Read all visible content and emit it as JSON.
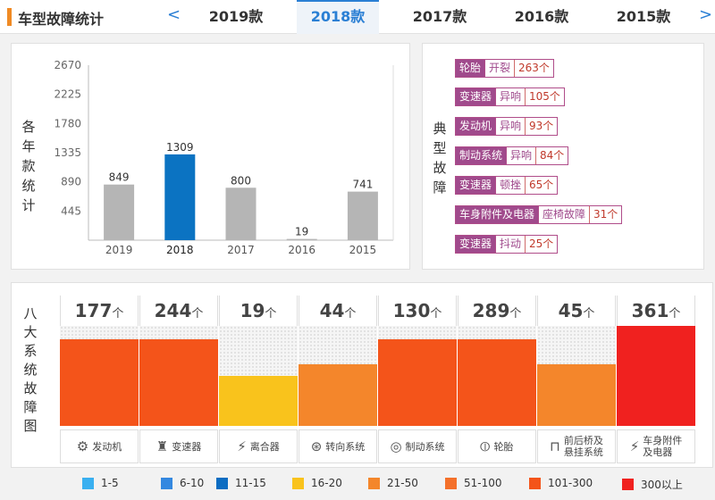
{
  "header": {
    "title": "车型故障统计",
    "prev_arrow": "<",
    "next_arrow": ">",
    "tabs": [
      {
        "label": "2019款",
        "active": false
      },
      {
        "label": "2018款",
        "active": true
      },
      {
        "label": "2017款",
        "active": false
      },
      {
        "label": "2016款",
        "active": false
      },
      {
        "label": "2015款",
        "active": false
      }
    ]
  },
  "yearly": {
    "title_chars": [
      "各",
      "年",
      "款",
      "统",
      "计"
    ]
  },
  "chart_data": {
    "type": "bar",
    "categories": [
      "2019",
      "2018",
      "2017",
      "2016",
      "2015"
    ],
    "values": [
      849,
      1309,
      800,
      19,
      741
    ],
    "highlight_index": 1,
    "ylim": [
      0,
      2670
    ],
    "yticks": [
      445,
      890,
      1335,
      1780,
      2225,
      2670
    ],
    "grid": false,
    "colors": {
      "default": "#b5b5b5",
      "highlight": "#0b73c2"
    }
  },
  "typical": {
    "title_chars": [
      "典",
      "型",
      "故",
      "障"
    ],
    "items": [
      {
        "part": "轮胎",
        "type": "开裂",
        "count": "263个"
      },
      {
        "part": "变速器",
        "type": "异响",
        "count": "105个"
      },
      {
        "part": "发动机",
        "type": "异响",
        "count": "93个"
      },
      {
        "part": "制动系统",
        "type": "异响",
        "count": "84个"
      },
      {
        "part": "变速器",
        "type": "顿挫",
        "count": "65个"
      },
      {
        "part": "车身附件及电器",
        "type": "座椅故障",
        "count": "31个"
      },
      {
        "part": "变速器",
        "type": "抖动",
        "count": "25个"
      }
    ]
  },
  "systems": {
    "title_chars": [
      "八",
      "大",
      "系",
      "统",
      "故",
      "障",
      "图"
    ],
    "unit": "个",
    "items": [
      {
        "count": "177",
        "level": 0.87,
        "color": "#f4541a",
        "label": "发动机",
        "icon": "engine-icon",
        "glyph": "⚙"
      },
      {
        "count": "244",
        "level": 0.87,
        "color": "#f4541a",
        "label": "变速器",
        "icon": "gear-shift-icon",
        "glyph": "♜"
      },
      {
        "count": "19",
        "level": 0.5,
        "color": "#f9c31c",
        "label": "离合器",
        "icon": "clutch-icon",
        "glyph": "⚡"
      },
      {
        "count": "44",
        "level": 0.62,
        "color": "#f4862b",
        "label": "转向系统",
        "icon": "steering-wheel-icon",
        "glyph": "⊛"
      },
      {
        "count": "130",
        "level": 0.87,
        "color": "#f4541a",
        "label": "制动系统",
        "icon": "brake-disc-icon",
        "glyph": "◎"
      },
      {
        "count": "289",
        "level": 0.87,
        "color": "#f4541a",
        "label": "轮胎",
        "icon": "tire-icon",
        "glyph": "⦶"
      },
      {
        "count": "45",
        "level": 0.62,
        "color": "#f4862b",
        "label": "前后桥及\n悬挂系统",
        "icon": "suspension-icon",
        "glyph": "⊓"
      },
      {
        "count": "361",
        "level": 1.0,
        "color": "#f0211f",
        "label": "车身附件\n及电器",
        "icon": "battery-icon",
        "glyph": "⚡"
      }
    ]
  },
  "legend": [
    {
      "label": "1-5",
      "color": "#3ab0f0"
    },
    {
      "label": "6-10",
      "color": "#3488e0"
    },
    {
      "label": "11-15",
      "color": "#0b6cc2"
    },
    {
      "label": "16-20",
      "color": "#f9c31c"
    },
    {
      "label": "21-50",
      "color": "#f4862b"
    },
    {
      "label": "51-100",
      "color": "#f4702a"
    },
    {
      "label": "101-300",
      "color": "#f4541a"
    },
    {
      "label": "300以上",
      "color": "#f0211f"
    }
  ]
}
